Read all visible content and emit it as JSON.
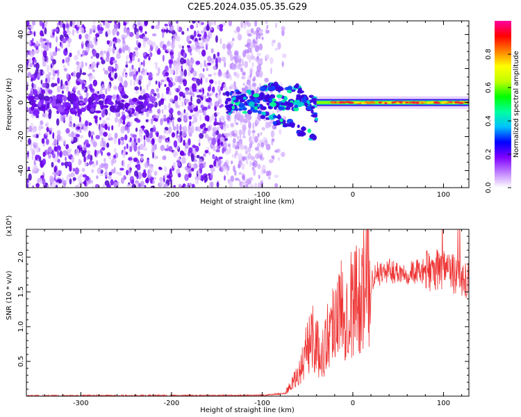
{
  "title": "C2E5.2024.035.05.35.G29",
  "chart_data": [
    {
      "type": "heatmap",
      "xlabel": "Height of straight line (km)",
      "ylabel": "Frequency (Hz)",
      "xlim": [
        -360,
        128
      ],
      "ylim": [
        -50,
        48
      ],
      "xticks": [
        -300,
        -200,
        -100,
        0,
        100
      ],
      "yticks": [
        -40,
        -20,
        0,
        20,
        40
      ],
      "grid": false,
      "colorbar": {
        "label": "Normalized spectral amplitude",
        "range": [
          0,
          1
        ],
        "ticks": [
          "0.0",
          "0.2",
          "0.4",
          "0.6",
          "0.8"
        ],
        "colors": [
          "#ffffff",
          "#c080ff",
          "#8000ff",
          "#0000ff",
          "#00c0ff",
          "#00ffa0",
          "#00ff00",
          "#c0ff00",
          "#ffff00",
          "#ff8000",
          "#ff0000",
          "#ff00a0"
        ]
      },
      "features": {
        "noise_region_x": [
          -360,
          -100
        ],
        "signal_start_x": -100,
        "carrier_freq_hz": 0,
        "carrier_x": [
          -40,
          128
        ]
      }
    },
    {
      "type": "line",
      "xlabel": "Height of straight line (km)",
      "ylabel": "SNR (10 * v/v)",
      "yscale_label": "(x10⁴)",
      "xlim": [
        -360,
        128
      ],
      "ylim": [
        0,
        2.4
      ],
      "xticks": [
        -300,
        -200,
        -100,
        0,
        100
      ],
      "yticks": [
        "0.5",
        "1.0",
        "1.5",
        "2.0"
      ],
      "color": "#ee3333",
      "series_envelope": {
        "x": [
          -360,
          -100,
          -75,
          -60,
          -45,
          -35,
          -20,
          -5,
          10,
          25,
          40,
          60,
          80,
          100,
          128
        ],
        "y": [
          0.005,
          0.01,
          0.04,
          0.3,
          0.9,
          0.55,
          1.2,
          1.3,
          1.5,
          1.75,
          1.8,
          1.78,
          1.8,
          1.82,
          1.7
        ]
      }
    }
  ]
}
